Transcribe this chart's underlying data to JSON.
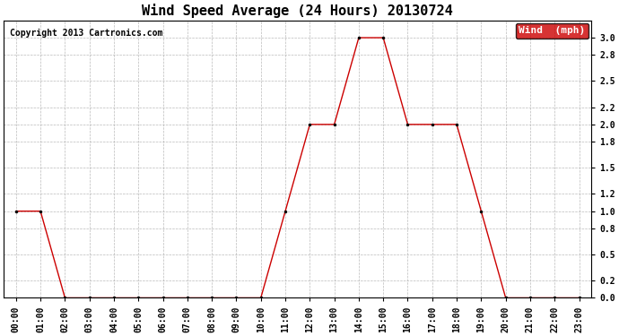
{
  "title": "Wind Speed Average (24 Hours) 20130724",
  "copyright": "Copyright 2013 Cartronics.com",
  "legend_label": "Wind  (mph)",
  "legend_bg": "#cc0000",
  "legend_text_color": "#ffffff",
  "line_color": "#cc0000",
  "marker_color": "#000000",
  "bg_color": "#ffffff",
  "grid_color": "#aaaaaa",
  "ylim": [
    0.0,
    3.2
  ],
  "yticks": [
    0.0,
    0.2,
    0.5,
    0.8,
    1.0,
    1.2,
    1.5,
    1.8,
    2.0,
    2.2,
    2.5,
    2.8,
    3.0
  ],
  "hours": [
    "00:00",
    "01:00",
    "02:00",
    "03:00",
    "04:00",
    "05:00",
    "06:00",
    "07:00",
    "08:00",
    "09:00",
    "10:00",
    "11:00",
    "12:00",
    "13:00",
    "14:00",
    "15:00",
    "16:00",
    "17:00",
    "18:00",
    "19:00",
    "20:00",
    "21:00",
    "22:00",
    "23:00"
  ],
  "x_values": [
    0,
    1,
    2,
    3,
    4,
    5,
    6,
    7,
    8,
    9,
    10,
    11,
    12,
    13,
    14,
    15,
    16,
    17,
    18,
    19,
    20,
    21,
    22,
    23
  ],
  "wind_values": [
    1.0,
    1.0,
    0.0,
    0.0,
    0.0,
    0.0,
    0.0,
    0.0,
    0.0,
    0.0,
    0.0,
    1.0,
    2.0,
    2.0,
    3.0,
    3.0,
    2.0,
    2.0,
    2.0,
    1.0,
    0.0,
    0.0,
    0.0,
    0.0
  ],
  "title_fontsize": 11,
  "copyright_fontsize": 7,
  "tick_fontsize": 7,
  "legend_fontsize": 8
}
